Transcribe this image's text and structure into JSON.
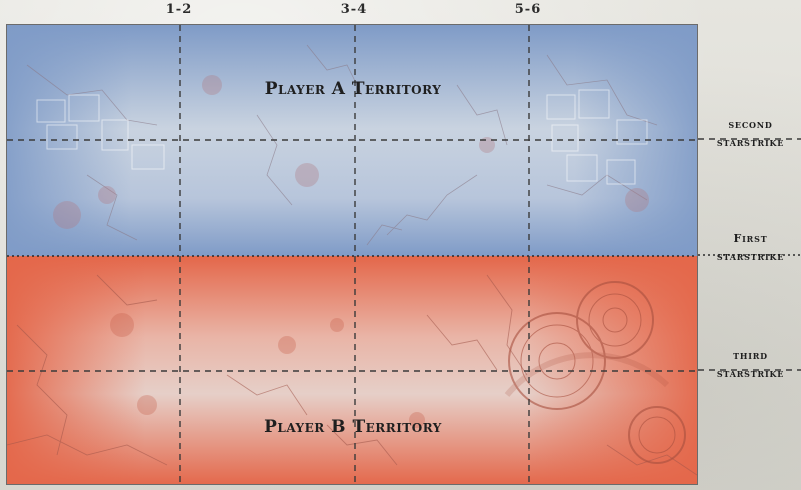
{
  "columns": [
    "1-2",
    "3-4",
    "5-6"
  ],
  "territories": {
    "player_a": "Player A Territory",
    "player_b": "Player B Territory"
  },
  "starstrikes": {
    "second": [
      "second",
      "starstrike"
    ],
    "first": [
      "First",
      "starstrike"
    ],
    "third": [
      "third",
      "starstrike"
    ]
  },
  "colors": {
    "player_a_zone": "#7f9bc7",
    "player_b_zone": "#e4674a",
    "zone_center": "#dcdcdc",
    "grid_line": "#3a3a3a"
  }
}
